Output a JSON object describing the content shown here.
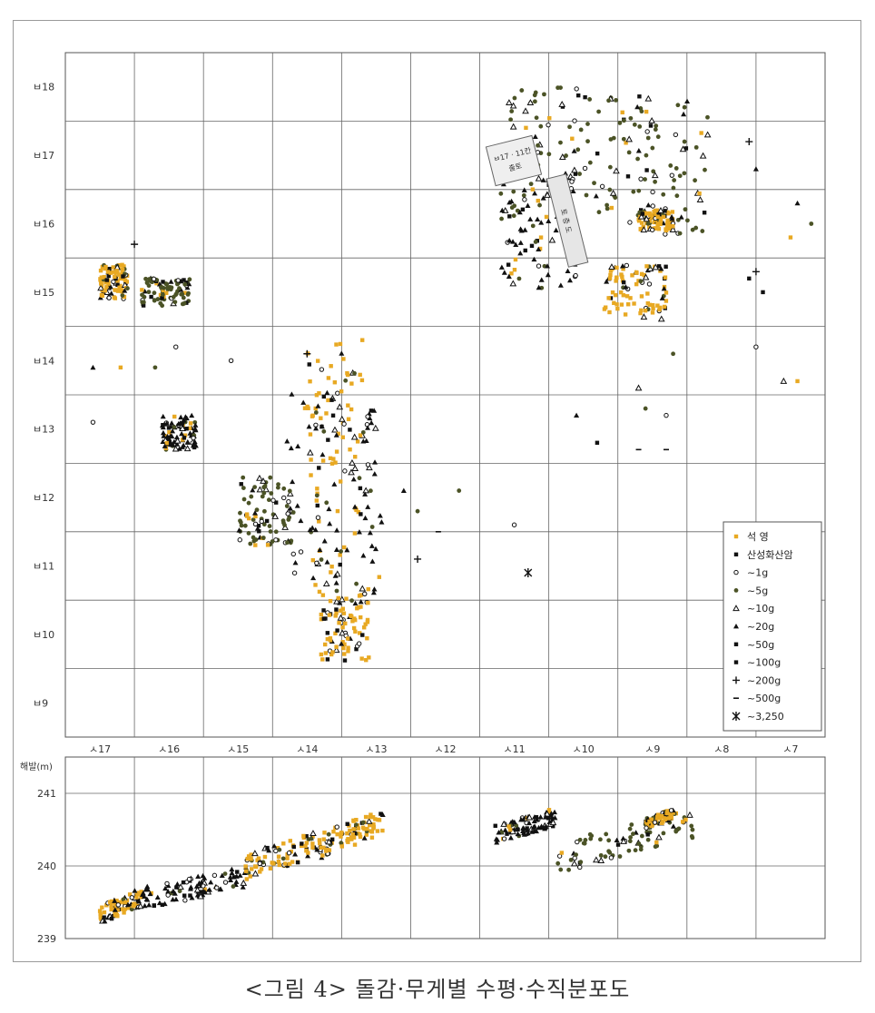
{
  "figure": {
    "caption": "<그림 4> 돌감·무게별 수평·수직분포도",
    "label_box_top": "ㅂ17ㆍ11칸",
    "label_box_bottom": "출토",
    "label_strip": "토 층 도"
  },
  "chart_data": [
    {
      "type": "scatter",
      "title": "",
      "xlabel": "",
      "ylabel": "",
      "x_ticks": [
        "ㅅ17",
        "ㅅ16",
        "ㅅ15",
        "ㅅ14",
        "ㅅ13",
        "ㅅ12",
        "ㅅ11",
        "ㅅ10",
        "ㅅ9",
        "ㅅ8",
        "ㅅ7"
      ],
      "y_ticks": [
        "ㅂ18",
        "ㅂ17",
        "ㅂ16",
        "ㅂ15",
        "ㅂ14",
        "ㅂ13",
        "ㅂ12",
        "ㅂ11",
        "ㅂ10",
        "ㅂ9"
      ],
      "xlim": [
        17.5,
        6.5
      ],
      "ylim": [
        8.5,
        18.5
      ],
      "grid": true,
      "legend_position": "lower-right",
      "series": [
        {
          "name": "석 영",
          "color": "#e8a923",
          "marker": "square-orange"
        },
        {
          "name": "산성화산암",
          "color": "#000000",
          "marker": "square-filled"
        },
        {
          "name": "~1g",
          "color": "#000000",
          "marker": "circle-open"
        },
        {
          "name": "~5g",
          "color": "#4b5326",
          "marker": "circle-filled"
        },
        {
          "name": "~10g",
          "color": "#000000",
          "marker": "triangle-open"
        },
        {
          "name": "~20g",
          "color": "#000000",
          "marker": "triangle-filled"
        },
        {
          "name": "~50g",
          "color": "#000000",
          "marker": "square-small"
        },
        {
          "name": "~100g",
          "color": "#000000",
          "marker": "square-filled"
        },
        {
          "name": "~200g",
          "color": "#000000",
          "marker": "plus"
        },
        {
          "name": "~500g",
          "color": "#000000",
          "marker": "dash"
        },
        {
          "name": "~3,250",
          "color": "#000000",
          "marker": "asterisk"
        }
      ],
      "clusters": [
        {
          "x": [
            9.6,
            11.2
          ],
          "y": [
            16.0,
            18.0
          ],
          "dominant": "~5g"
        },
        {
          "x": [
            8.2,
            9.6
          ],
          "y": [
            15.8,
            17.9
          ],
          "dominant": "~5g"
        },
        {
          "x": [
            8.7,
            9.2
          ],
          "y": [
            15.9,
            16.2
          ],
          "dominant": "석 영"
        },
        {
          "x": [
            10.1,
            11.2
          ],
          "y": [
            15.0,
            16.8
          ],
          "dominant": "~20g"
        },
        {
          "x": [
            8.8,
            9.7
          ],
          "y": [
            14.6,
            15.4
          ],
          "dominant": "석 영"
        },
        {
          "x": [
            13.2,
            14.0
          ],
          "y": [
            10.6,
            14.4
          ],
          "dominant": "석 영"
        },
        {
          "x": [
            12.9,
            14.3
          ],
          "y": [
            10.6,
            13.6
          ],
          "dominant": "~20g"
        },
        {
          "x": [
            13.1,
            13.8
          ],
          "y": [
            9.6,
            10.6
          ],
          "dominant": "석 영"
        },
        {
          "x": [
            14.2,
            15.0
          ],
          "y": [
            11.3,
            12.3
          ],
          "dominant": "~5g"
        },
        {
          "x": [
            15.6,
            16.1
          ],
          "y": [
            12.7,
            13.2
          ],
          "dominant": "~20g"
        },
        {
          "x": [
            15.7,
            16.4
          ],
          "y": [
            14.8,
            15.2
          ],
          "dominant": "~5g"
        },
        {
          "x": [
            16.6,
            17.0
          ],
          "y": [
            14.9,
            15.4
          ],
          "dominant": "석 영"
        }
      ],
      "points": [
        {
          "x": 16.5,
          "y": 15.7,
          "series": "~200g"
        },
        {
          "x": 16.2,
          "y": 13.9,
          "series": "~5g"
        },
        {
          "x": 17.1,
          "y": 13.9,
          "series": "~20g"
        },
        {
          "x": 17.1,
          "y": 13.1,
          "series": "~1g"
        },
        {
          "x": 16.7,
          "y": 13.9,
          "series": "석 영"
        },
        {
          "x": 15.9,
          "y": 14.2,
          "series": "~1g"
        },
        {
          "x": 15.1,
          "y": 14.0,
          "series": "~1g"
        },
        {
          "x": 14.0,
          "y": 14.1,
          "series": "~200g"
        },
        {
          "x": 13.2,
          "y": 14.3,
          "series": "석 영"
        },
        {
          "x": 12.4,
          "y": 11.8,
          "series": "~5g"
        },
        {
          "x": 12.6,
          "y": 12.1,
          "series": "~20g"
        },
        {
          "x": 12.1,
          "y": 11.5,
          "series": "~500g"
        },
        {
          "x": 12.4,
          "y": 11.1,
          "series": "~200g"
        },
        {
          "x": 11.8,
          "y": 12.1,
          "series": "~5g"
        },
        {
          "x": 10.8,
          "y": 10.9,
          "series": "~3,250"
        },
        {
          "x": 11.0,
          "y": 11.6,
          "series": "~1g"
        },
        {
          "x": 10.1,
          "y": 13.2,
          "series": "~20g"
        },
        {
          "x": 9.8,
          "y": 12.8,
          "series": "~50g"
        },
        {
          "x": 9.2,
          "y": 12.7,
          "series": "~500g"
        },
        {
          "x": 8.8,
          "y": 12.7,
          "series": "~500g"
        },
        {
          "x": 9.2,
          "y": 13.6,
          "series": "~10g"
        },
        {
          "x": 8.8,
          "y": 13.2,
          "series": "~1g"
        },
        {
          "x": 9.1,
          "y": 13.3,
          "series": "~5g"
        },
        {
          "x": 8.7,
          "y": 14.1,
          "series": "~5g"
        },
        {
          "x": 7.5,
          "y": 14.2,
          "series": "~1g"
        },
        {
          "x": 7.1,
          "y": 13.7,
          "series": "~10g"
        },
        {
          "x": 6.9,
          "y": 13.7,
          "series": "석 영"
        },
        {
          "x": 7.4,
          "y": 15.0,
          "series": "~50g"
        },
        {
          "x": 7.6,
          "y": 15.2,
          "series": "~100g"
        },
        {
          "x": 7.5,
          "y": 15.3,
          "series": "~200g"
        },
        {
          "x": 6.9,
          "y": 16.3,
          "series": "~20g"
        },
        {
          "x": 6.7,
          "y": 16.0,
          "series": "~5g"
        },
        {
          "x": 7.0,
          "y": 15.8,
          "series": "석 영"
        },
        {
          "x": 7.5,
          "y": 16.8,
          "series": "~20g"
        },
        {
          "x": 7.6,
          "y": 17.2,
          "series": "~200g"
        },
        {
          "x": 8.6,
          "y": 16.7,
          "series": "~5g"
        },
        {
          "x": 8.2,
          "y": 17.3,
          "series": "~10g"
        }
      ]
    },
    {
      "type": "scatter",
      "title": "",
      "xlabel": "",
      "ylabel": "해발(m)",
      "y_ticks": [
        "241",
        "240",
        "239"
      ],
      "ylim": [
        239.0,
        241.0
      ],
      "xlim": [
        17.5,
        6.5
      ],
      "grid": true,
      "clusters": [
        {
          "x": [
            17.0,
            16.4
          ],
          "y": [
            239.2,
            239.7
          ],
          "dominant": "석 영"
        },
        {
          "x": [
            16.4,
            14.9
          ],
          "y": [
            239.4,
            240.0
          ],
          "dominant": "~20g"
        },
        {
          "x": [
            14.9,
            13.8
          ],
          "y": [
            239.8,
            240.5
          ],
          "dominant": "석 영"
        },
        {
          "x": [
            13.8,
            12.9
          ],
          "y": [
            240.1,
            240.8
          ],
          "dominant": "석 영"
        },
        {
          "x": [
            11.3,
            10.4
          ],
          "y": [
            240.3,
            240.8
          ],
          "dominant": "~20g"
        },
        {
          "x": [
            10.4,
            8.4
          ],
          "y": [
            239.9,
            240.8
          ],
          "dominant": "~5g"
        },
        {
          "x": [
            9.1,
            8.7
          ],
          "y": [
            240.5,
            240.8
          ],
          "dominant": "석 영"
        }
      ]
    }
  ]
}
